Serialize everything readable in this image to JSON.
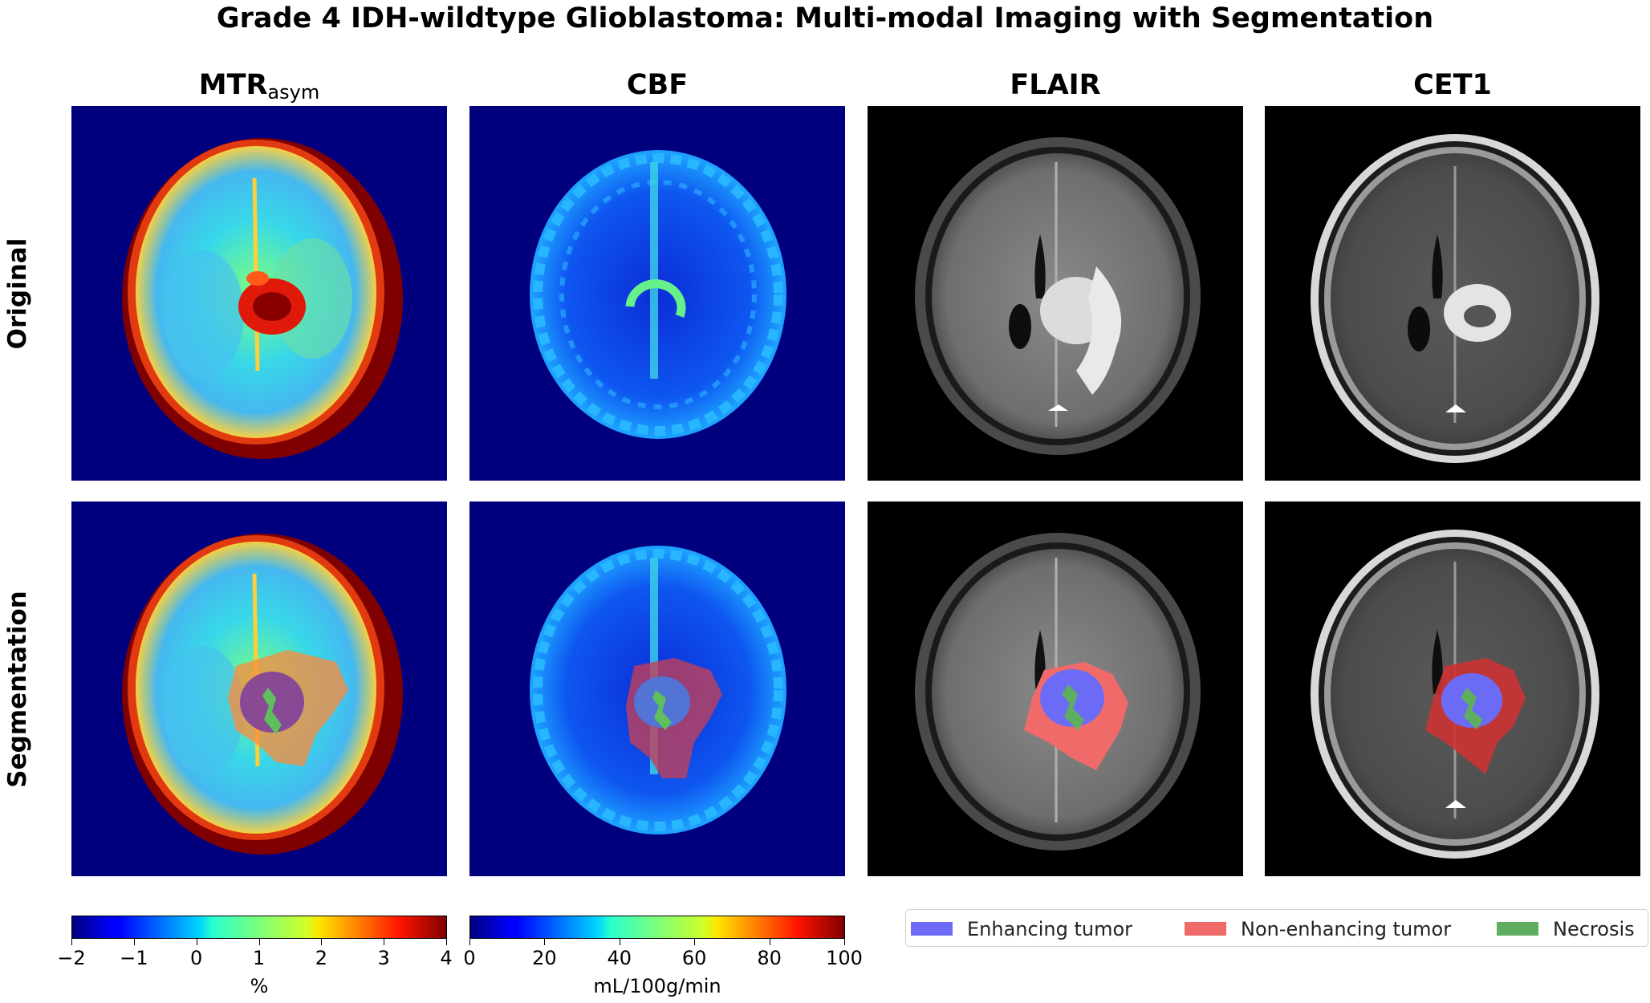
{
  "figure": {
    "title": "Grade 4 IDH-wildtype Glioblastoma: Multi-modal Imaging with Segmentation"
  },
  "columns": [
    {
      "label_main": "MTR",
      "label_sub": "asym"
    },
    {
      "label_main": "CBF",
      "label_sub": ""
    },
    {
      "label_main": "FLAIR",
      "label_sub": ""
    },
    {
      "label_main": "CET1",
      "label_sub": ""
    }
  ],
  "rows": [
    {
      "label": "Original"
    },
    {
      "label": "Segmentation"
    }
  ],
  "colorbars": [
    {
      "label": "%",
      "ticks": [
        "−2",
        "−1",
        "0",
        "1",
        "2",
        "3",
        "4"
      ],
      "colormap": "jet"
    },
    {
      "label": "mL/100g/min",
      "ticks": [
        "0",
        "20",
        "40",
        "60",
        "80",
        "100"
      ],
      "colormap": "jet"
    }
  ],
  "legend": {
    "items": [
      {
        "label": "Enhancing tumor",
        "color": "#6b6bf5"
      },
      {
        "label": "Non-enhancing tumor",
        "color": "#f06a6a"
      },
      {
        "label": "Necrosis",
        "color": "#5fae5f"
      }
    ]
  },
  "colors": {
    "jet_background": "#00007f",
    "mri_background": "#000000"
  }
}
